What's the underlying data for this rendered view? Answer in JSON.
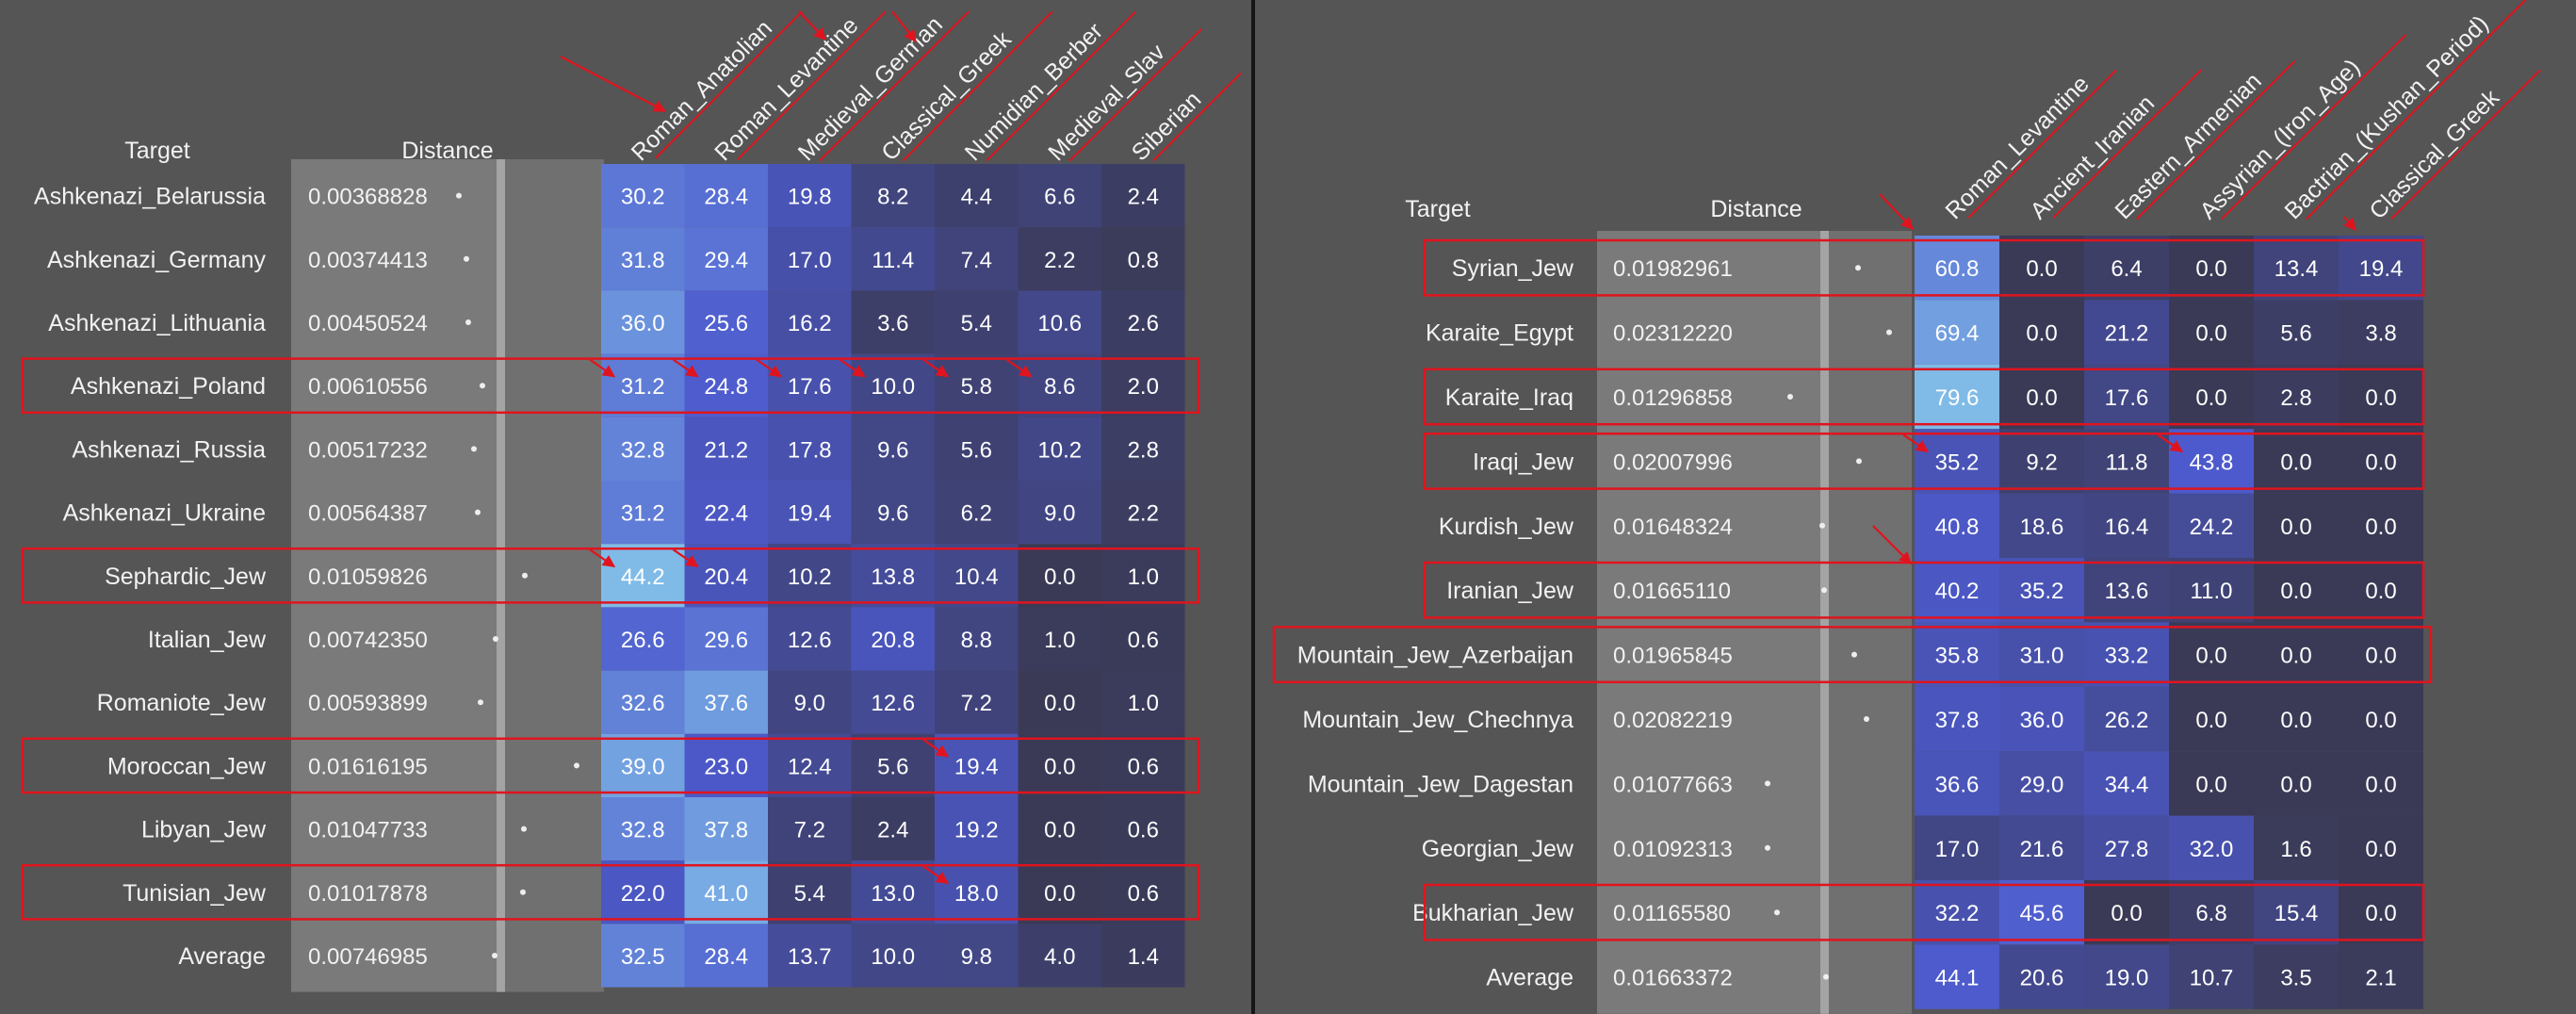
{
  "panels": [
    {
      "target_header": "Target",
      "distance_header": "Distance",
      "chart_data": {
        "type": "heatmap",
        "columns": [
          "Roman_Anatolian",
          "Roman_Levantine",
          "Medieval_German",
          "Classical_Greek",
          "Numidian_Berber",
          "Medieval_Slav",
          "Siberian"
        ],
        "rows": [
          {
            "target": "Ashkenazi_Belarussia",
            "distance": "0.00368828",
            "values": [
              30.2,
              28.4,
              19.8,
              8.2,
              4.4,
              6.6,
              2.4
            ]
          },
          {
            "target": "Ashkenazi_Germany",
            "distance": "0.00374413",
            "values": [
              31.8,
              29.4,
              17.0,
              11.4,
              7.4,
              2.2,
              0.8
            ]
          },
          {
            "target": "Ashkenazi_Lithuania",
            "distance": "0.00450524",
            "values": [
              36.0,
              25.6,
              16.2,
              3.6,
              5.4,
              10.6,
              2.6
            ]
          },
          {
            "target": "Ashkenazi_Poland",
            "distance": "0.00610556",
            "values": [
              31.2,
              24.8,
              17.6,
              10.0,
              5.8,
              8.6,
              2.0
            ]
          },
          {
            "target": "Ashkenazi_Russia",
            "distance": "0.00517232",
            "values": [
              32.8,
              21.2,
              17.8,
              9.6,
              5.6,
              10.2,
              2.8
            ]
          },
          {
            "target": "Ashkenazi_Ukraine",
            "distance": "0.00564387",
            "values": [
              31.2,
              22.4,
              19.4,
              9.6,
              6.2,
              9.0,
              2.2
            ]
          },
          {
            "target": "Sephardic_Jew",
            "distance": "0.01059826",
            "values": [
              44.2,
              20.4,
              10.2,
              13.8,
              10.4,
              0.0,
              1.0
            ]
          },
          {
            "target": "Italian_Jew",
            "distance": "0.00742350",
            "values": [
              26.6,
              29.6,
              12.6,
              20.8,
              8.8,
              1.0,
              0.6
            ]
          },
          {
            "target": "Romaniote_Jew",
            "distance": "0.00593899",
            "values": [
              32.6,
              37.6,
              9.0,
              12.6,
              7.2,
              0.0,
              1.0
            ]
          },
          {
            "target": "Moroccan_Jew",
            "distance": "0.01616195",
            "values": [
              39.0,
              23.0,
              12.4,
              5.6,
              19.4,
              0.0,
              0.6
            ]
          },
          {
            "target": "Libyan_Jew",
            "distance": "0.01047733",
            "values": [
              32.8,
              37.8,
              7.2,
              2.4,
              19.2,
              0.0,
              0.6
            ]
          },
          {
            "target": "Tunisian_Jew",
            "distance": "0.01017878",
            "values": [
              22.0,
              41.0,
              5.4,
              13.0,
              18.0,
              0.0,
              0.6
            ]
          },
          {
            "target": "Average",
            "distance": "0.00746985",
            "values": [
              32.5,
              28.4,
              13.7,
              10.0,
              9.8,
              4.0,
              1.4
            ]
          }
        ],
        "highlighted_rows": [
          "Ashkenazi_Poland",
          "Sephardic_Jew",
          "Moroccan_Jew",
          "Tunisian_Jew"
        ],
        "annotation_color": "#e0141e"
      }
    },
    {
      "target_header": "Target",
      "distance_header": "Distance",
      "chart_data": {
        "type": "heatmap",
        "columns": [
          "Roman_Levantine",
          "Ancient_Iranian",
          "Eastern_Armenian",
          "Assyrian_(Iron_Age)",
          "Bactrian_(Kushan_Period)",
          "Classical_Greek"
        ],
        "rows": [
          {
            "target": "Syrian_Jew",
            "distance": "0.01982961",
            "values": [
              60.8,
              0.0,
              6.4,
              0.0,
              13.4,
              19.4
            ]
          },
          {
            "target": "Karaite_Egypt",
            "distance": "0.02312220",
            "values": [
              69.4,
              0.0,
              21.2,
              0.0,
              5.6,
              3.8
            ]
          },
          {
            "target": "Karaite_Iraq",
            "distance": "0.01296858",
            "values": [
              79.6,
              0.0,
              17.6,
              0.0,
              2.8,
              0.0
            ]
          },
          {
            "target": "Iraqi_Jew",
            "distance": "0.02007996",
            "values": [
              35.2,
              9.2,
              11.8,
              43.8,
              0.0,
              0.0
            ]
          },
          {
            "target": "Kurdish_Jew",
            "distance": "0.01648324",
            "values": [
              40.8,
              18.6,
              16.4,
              24.2,
              0.0,
              0.0
            ]
          },
          {
            "target": "Iranian_Jew",
            "distance": "0.01665110",
            "values": [
              40.2,
              35.2,
              13.6,
              11.0,
              0.0,
              0.0
            ]
          },
          {
            "target": "Mountain_Jew_Azerbaijan",
            "distance": "0.01965845",
            "values": [
              35.8,
              31.0,
              33.2,
              0.0,
              0.0,
              0.0
            ]
          },
          {
            "target": "Mountain_Jew_Chechnya",
            "distance": "0.02082219",
            "values": [
              37.8,
              36.0,
              26.2,
              0.0,
              0.0,
              0.0
            ]
          },
          {
            "target": "Mountain_Jew_Dagestan",
            "distance": "0.01077663",
            "values": [
              36.6,
              29.0,
              34.4,
              0.0,
              0.0,
              0.0
            ]
          },
          {
            "target": "Georgian_Jew",
            "distance": "0.01092313",
            "values": [
              17.0,
              21.6,
              27.8,
              32.0,
              1.6,
              0.0
            ]
          },
          {
            "target": "Bukharian_Jew",
            "distance": "0.01165580",
            "values": [
              32.2,
              45.6,
              0.0,
              6.8,
              15.4,
              0.0
            ]
          },
          {
            "target": "Average",
            "distance": "0.01663372",
            "values": [
              44.1,
              20.6,
              19.0,
              10.7,
              3.5,
              2.1
            ]
          }
        ],
        "highlighted_rows": [
          "Syrian_Jew",
          "Karaite_Iraq",
          "Iraqi_Jew",
          "Iranian_Jew",
          "Mountain_Jew_Azerbaijan",
          "Bukharian_Jew"
        ],
        "annotation_color": "#e0141e"
      }
    }
  ]
}
